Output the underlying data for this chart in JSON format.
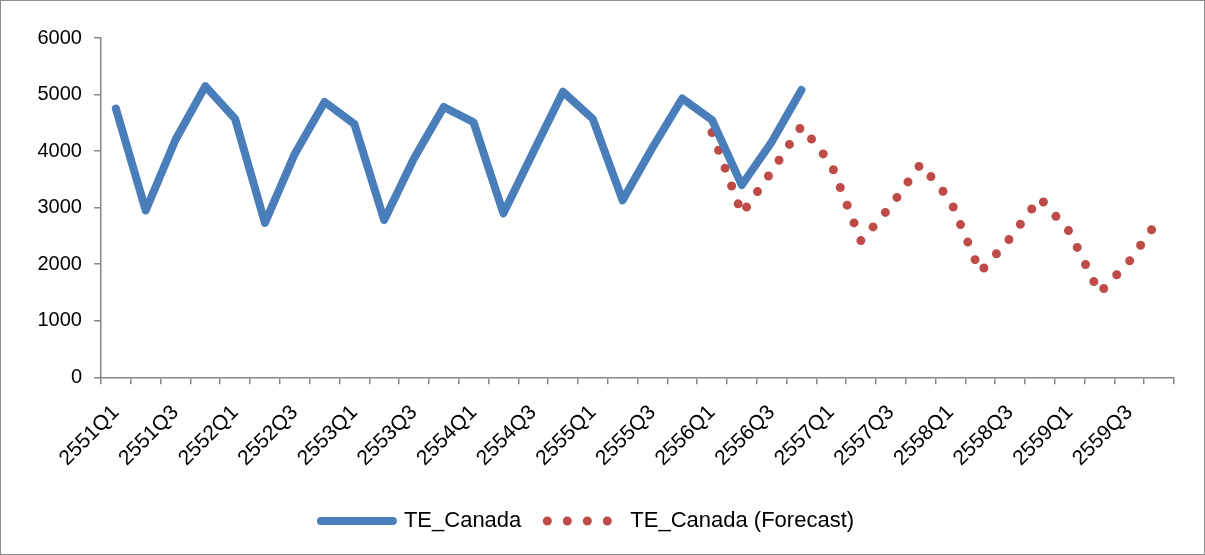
{
  "chart_data": {
    "type": "line",
    "categories": [
      "2551Q1",
      null,
      "2551Q3",
      null,
      "2552Q1",
      null,
      "2552Q3",
      null,
      "2553Q1",
      null,
      "2553Q3",
      null,
      "2554Q1",
      null,
      "2554Q3",
      null,
      "2555Q1",
      null,
      "2555Q3",
      null,
      "2556Q1",
      null,
      "2556Q3",
      null,
      "2557Q1",
      null,
      "2557Q3",
      null,
      "2558Q1",
      null,
      "2558Q3",
      null,
      "2559Q1",
      null,
      "2559Q3",
      null
    ],
    "series": [
      {
        "name": "TE_Canada",
        "color": "#4a7ebb",
        "line_style": "solid",
        "values": [
          4750,
          2950,
          4200,
          5150,
          4570,
          2730,
          3950,
          4870,
          4480,
          2780,
          3870,
          4780,
          4510,
          2900,
          3980,
          5050,
          4570,
          3130,
          4060,
          4930,
          4550,
          3400,
          4160,
          5080,
          null,
          null,
          null,
          null,
          null,
          null,
          null,
          null,
          null,
          null,
          null,
          null
        ]
      },
      {
        "name": "TE_Canada (Forecast)",
        "color": "#be4b48",
        "line_style": "dotted",
        "values": [
          null,
          null,
          null,
          null,
          null,
          null,
          null,
          null,
          null,
          null,
          null,
          null,
          null,
          null,
          null,
          null,
          null,
          null,
          null,
          null,
          4330,
          2890,
          3640,
          4440,
          3770,
          2410,
          3030,
          3770,
          3130,
          1860,
          2460,
          3170,
          2570,
          1490,
          2050,
          2800
        ]
      }
    ],
    "ylim": [
      0,
      6000
    ],
    "yticks": [
      0,
      1000,
      2000,
      3000,
      4000,
      5000,
      6000
    ],
    "grid": false,
    "legend": "bottom"
  }
}
